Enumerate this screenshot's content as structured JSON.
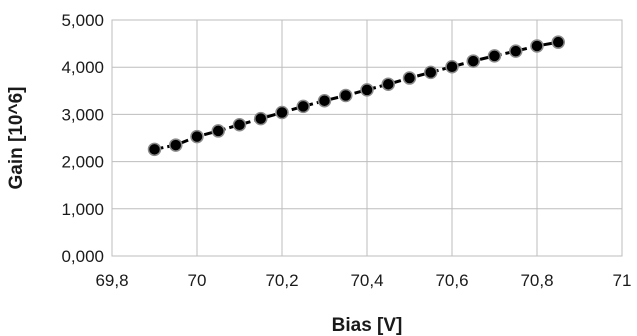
{
  "chart_data": {
    "type": "line",
    "title": "",
    "xlabel": "Bias [V]",
    "ylabel": "Gain [10^6]",
    "xlim": [
      69.8,
      71
    ],
    "ylim": [
      0,
      5
    ],
    "x_ticks": [
      69.8,
      70,
      70.2,
      70.4,
      70.6,
      70.8,
      71
    ],
    "x_tick_labels": [
      "69,8",
      "70",
      "70,2",
      "70,4",
      "70,6",
      "70,8",
      "71"
    ],
    "y_ticks": [
      0,
      1,
      2,
      3,
      4,
      5
    ],
    "y_tick_labels": [
      "0,000",
      "1,000",
      "2,000",
      "3,000",
      "4,000",
      "5,000"
    ],
    "grid": true,
    "legend": "none",
    "series": [
      {
        "x": [
          69.9,
          69.95,
          70.0,
          70.05,
          70.1,
          70.15,
          70.2,
          70.25,
          70.3,
          70.35,
          70.4,
          70.45,
          70.5,
          70.55,
          70.6,
          70.65,
          70.7,
          70.75,
          70.8,
          70.85
        ],
        "values": [
          2.26,
          2.35,
          2.53,
          2.65,
          2.78,
          2.91,
          3.04,
          3.17,
          3.29,
          3.4,
          3.52,
          3.64,
          3.77,
          3.89,
          4.01,
          4.13,
          4.24,
          4.34,
          4.45,
          4.53
        ],
        "color": "#000000",
        "line_style": "dashed",
        "marker": "circle"
      }
    ]
  }
}
